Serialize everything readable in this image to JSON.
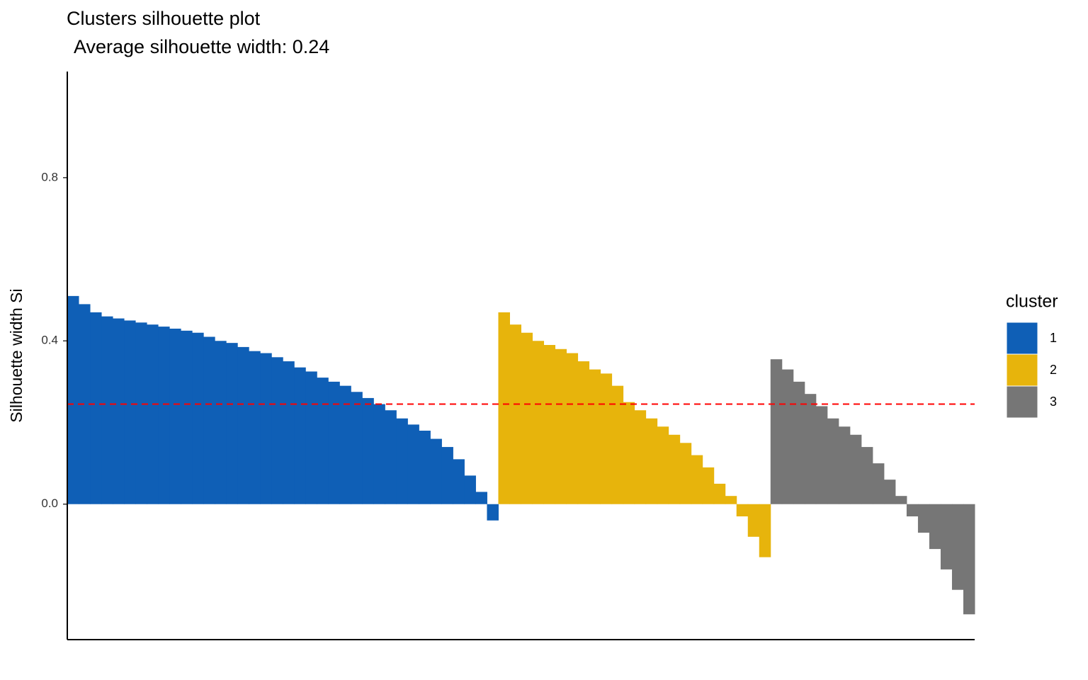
{
  "chart_data": {
    "type": "silhouette",
    "title": "Clusters silhouette plot",
    "subtitle": "Average silhouette width: 0.24",
    "y_label": "Silhouette width Si",
    "legend_title": "cluster",
    "legend_position": "right",
    "ylim": [
      -0.332,
      1.06
    ],
    "yticks": [
      {
        "value": 0,
        "label": "0.0"
      },
      0.4,
      0.8
    ],
    "reference_line": {
      "value": 0.245,
      "color": "#ff0000"
    },
    "series": [
      {
        "name": "1",
        "color": "#0f5fb6",
        "values": [
          0.51,
          0.49,
          0.47,
          0.46,
          0.455,
          0.45,
          0.445,
          0.44,
          0.435,
          0.43,
          0.425,
          0.42,
          0.41,
          0.4,
          0.395,
          0.385,
          0.375,
          0.37,
          0.36,
          0.35,
          0.335,
          0.325,
          0.31,
          0.3,
          0.29,
          0.275,
          0.26,
          0.245,
          0.23,
          0.21,
          0.195,
          0.18,
          0.16,
          0.14,
          0.11,
          0.07,
          0.03,
          -0.04
        ]
      },
      {
        "name": "2",
        "color": "#e7b40c",
        "values": [
          0.47,
          0.44,
          0.42,
          0.4,
          0.39,
          0.38,
          0.37,
          0.35,
          0.33,
          0.32,
          0.29,
          0.25,
          0.23,
          0.21,
          0.19,
          0.17,
          0.15,
          0.12,
          0.09,
          0.05,
          0.02,
          -0.03,
          -0.08,
          -0.13
        ]
      },
      {
        "name": "3",
        "color": "#767676",
        "values": [
          0.355,
          0.33,
          0.3,
          0.27,
          0.24,
          0.21,
          0.19,
          0.17,
          0.14,
          0.1,
          0.06,
          0.02,
          -0.03,
          -0.07,
          -0.11,
          -0.16,
          -0.21,
          -0.27
        ]
      }
    ]
  }
}
